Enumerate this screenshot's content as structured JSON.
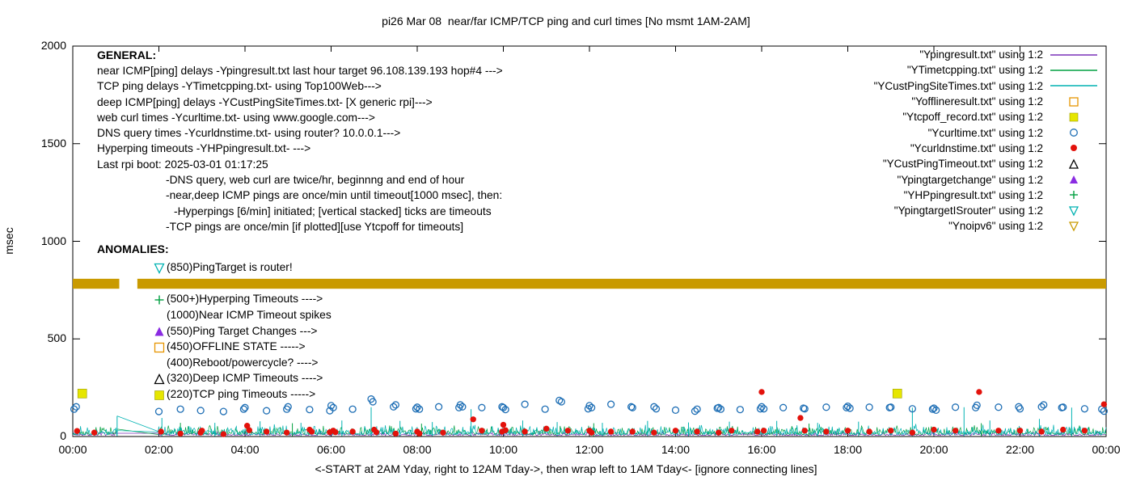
{
  "title": "pi26 Mar 08  near/far ICMP/TCP ping and curl times [No msmt 1AM-2AM]",
  "xlabel": "<-START at 2AM Yday, right to 12AM Tday->, then wrap left to 1AM Tday<- [ignore connecting lines]",
  "ylabel": "msec",
  "general": {
    "heading": "GENERAL:",
    "lines": [
      {
        "text": "near ICMP[ping] delays -Ypingresult.txt last hour target 96.108.139.193 hop#4 --->",
        "indent": 0
      },
      {
        "text": "TCP ping delays -YTimetcpping.txt- using Top100Web--->",
        "indent": 0
      },
      {
        "text": "deep ICMP[ping] delays -YCustPingSiteTimes.txt- [X generic rpi]--->",
        "indent": 0
      },
      {
        "text": "web curl times -Ycurltime.txt- using www.google.com--->",
        "indent": 0
      },
      {
        "text": "DNS query times -Ycurldnstime.txt- using router? 10.0.0.1--->",
        "indent": 0
      },
      {
        "text": "Hyperping timeouts -YHPpingresult.txt- --->",
        "indent": 0
      },
      {
        "text": "Last rpi boot: 2025-03-01 01:17:25",
        "indent": 0
      },
      {
        "text": "-DNS query, web curl are twice/hr, beginnng and end of hour",
        "indent": 1
      },
      {
        "text": "-near,deep ICMP pings are once/min until timeout[1000 msec], then:",
        "indent": 1
      },
      {
        "text": "-Hyperpings [6/min] initiated; [vertical stacked] ticks are timeouts",
        "indent": 2
      },
      {
        "text": "-TCP pings are once/min [if plotted][use Ytcpoff for timeouts]",
        "indent": 1
      }
    ]
  },
  "anomalies": {
    "heading": "ANOMALIES:",
    "items": [
      {
        "shape": "tri-down-open",
        "color": "#00b2b2",
        "label": "(850)PingTarget is router!"
      },
      {
        "shape": "",
        "color": "",
        "label": ""
      },
      {
        "shape": "plus",
        "color": "#00a040",
        "label": "(500+)Hyperping Timeouts ---->"
      },
      {
        "shape": "",
        "color": "",
        "label": "(1000)Near ICMP Timeout spikes"
      },
      {
        "shape": "tri-fill",
        "color": "#8a2be2",
        "label": "(550)Ping Target Changes --->"
      },
      {
        "shape": "square-open",
        "color": "#e69500",
        "label": "(450)OFFLINE STATE ----->"
      },
      {
        "shape": "",
        "color": "",
        "label": "(400)Reboot/powercycle? ---->"
      },
      {
        "shape": "tri-open",
        "color": "#000000",
        "label": "(320)Deep ICMP Timeouts ---->"
      },
      {
        "shape": "square-fill",
        "color": "#e6e600",
        "label": "(220)TCP ping Timeouts ----->"
      }
    ]
  },
  "legend": {
    "items": [
      {
        "label": "\"Ypingresult.txt\" using 1:2",
        "shape": "line",
        "color": "#7a30b8"
      },
      {
        "label": "\"YTimetcpping.txt\" using 1:2",
        "shape": "line",
        "color": "#00a040"
      },
      {
        "label": "\"YCustPingSiteTimes.txt\" using 1:2",
        "shape": "line",
        "color": "#00b2b2"
      },
      {
        "label": "\"Yofflineresult.txt\" using 1:2",
        "shape": "square-open",
        "color": "#e69500"
      },
      {
        "label": "\"Ytcpoff_record.txt\" using 1:2",
        "shape": "square-fill",
        "color": "#e6e600"
      },
      {
        "label": "\"Ycurltime.txt\" using 1:2",
        "shape": "circle-open",
        "color": "#1f6fb5"
      },
      {
        "label": "\"Ycurldnstime.txt\" using 1:2",
        "shape": "circle-fill",
        "color": "#e3120b"
      },
      {
        "label": "\"YCustPingTimeout.txt\" using 1:2",
        "shape": "tri-open",
        "color": "#000000"
      },
      {
        "label": "\"Ypingtargetchange\" using 1:2",
        "shape": "tri-fill",
        "color": "#8a2be2"
      },
      {
        "label": "\"YHPpingresult.txt\" using 1:2",
        "shape": "plus",
        "color": "#00a040"
      },
      {
        "label": "\"YpingtargetISrouter\" using 1:2",
        "shape": "tri-down-open",
        "color": "#00b2b2"
      },
      {
        "label": "\"Ynoipv6\" using 1:2",
        "shape": "tri-down-open",
        "color": "#c99a00"
      }
    ]
  },
  "chart_data": {
    "type": "line+scatter",
    "title": "pi26 Mar 08  near/far ICMP/TCP ping and curl times [No msmt 1AM-2AM]",
    "xlabel": "<-START at 2AM Yday, right to 12AM Tday->, then wrap left to 1AM Tday<- [ignore connecting lines]",
    "ylabel": "msec",
    "xlim": [
      0,
      24
    ],
    "ylim": [
      0,
      2000
    ],
    "x_tick_hours": [
      0,
      2,
      4,
      6,
      8,
      10,
      12,
      14,
      16,
      18,
      20,
      22,
      24
    ],
    "x_tick_labels": [
      "00:00",
      "02:00",
      "04:00",
      "06:00",
      "08:00",
      "10:00",
      "12:00",
      "14:00",
      "16:00",
      "18:00",
      "20:00",
      "22:00",
      "00:00"
    ],
    "y_ticks": [
      0,
      500,
      1000,
      1500,
      2000
    ],
    "measurement_gap_hours": [
      1.05,
      1.97
    ],
    "series": [
      {
        "name": "Ypingresult.txt",
        "type": "noise-line",
        "color": "#7a30b8",
        "base": 5,
        "amp": 22,
        "seed": 7
      },
      {
        "name": "YTimetcpping.txt",
        "type": "noise-line",
        "color": "#00a040",
        "base": 10,
        "amp": 50,
        "seed": 13,
        "spikes": [
          [
            2.5,
            70
          ],
          [
            5.1,
            68
          ],
          [
            8.1,
            66
          ],
          [
            12.1,
            68
          ],
          [
            17.1,
            66
          ],
          [
            21.1,
            68
          ]
        ]
      },
      {
        "name": "YCustPingSiteTimes.txt",
        "type": "noise-line",
        "color": "#00b2b2",
        "base": 8,
        "amp": 58,
        "seed": 29,
        "spikes": [
          [
            1.03,
            105
          ],
          [
            2.07,
            95
          ],
          [
            3.3,
            70
          ],
          [
            4.35,
            78
          ],
          [
            5.3,
            70
          ],
          [
            6.25,
            82
          ],
          [
            6.93,
            150
          ],
          [
            7.6,
            80
          ],
          [
            8.35,
            74
          ],
          [
            9.25,
            140
          ],
          [
            10.45,
            82
          ],
          [
            11.25,
            74
          ],
          [
            12.3,
            70
          ],
          [
            13.35,
            80
          ],
          [
            14.3,
            72
          ],
          [
            15.25,
            76
          ],
          [
            16.35,
            80
          ],
          [
            17.3,
            70
          ],
          [
            18.25,
            76
          ],
          [
            19.5,
            148
          ],
          [
            20.7,
            150
          ],
          [
            21.3,
            82
          ],
          [
            22.45,
            90
          ],
          [
            23.2,
            148
          ]
        ],
        "connectors": [
          [
            1.03,
            105,
            2.0,
            25
          ]
        ]
      },
      {
        "name": "Ycurltime.txt",
        "type": "scatter",
        "marker": "circle-open",
        "color": "#1f6fb5",
        "points": [
          [
            0.03,
            140
          ],
          [
            0.08,
            152
          ],
          [
            2.0,
            128
          ],
          [
            2.5,
            140
          ],
          [
            2.97,
            133
          ],
          [
            3.5,
            128
          ],
          [
            3.97,
            140
          ],
          [
            4.0,
            148
          ],
          [
            4.5,
            132
          ],
          [
            4.97,
            140
          ],
          [
            5.0,
            152
          ],
          [
            5.5,
            138
          ],
          [
            5.97,
            132
          ],
          [
            6.0,
            158
          ],
          [
            6.05,
            148
          ],
          [
            6.5,
            140
          ],
          [
            6.93,
            192
          ],
          [
            6.97,
            178
          ],
          [
            7.45,
            152
          ],
          [
            7.5,
            162
          ],
          [
            7.97,
            142
          ],
          [
            8.0,
            150
          ],
          [
            8.05,
            140
          ],
          [
            8.5,
            152
          ],
          [
            8.97,
            148
          ],
          [
            9.0,
            162
          ],
          [
            9.05,
            152
          ],
          [
            9.5,
            148
          ],
          [
            9.97,
            152
          ],
          [
            10.0,
            148
          ],
          [
            10.05,
            138
          ],
          [
            10.5,
            165
          ],
          [
            10.97,
            140
          ],
          [
            11.3,
            185
          ],
          [
            11.35,
            178
          ],
          [
            11.97,
            142
          ],
          [
            12.0,
            158
          ],
          [
            12.05,
            148
          ],
          [
            12.5,
            165
          ],
          [
            12.97,
            152
          ],
          [
            13.0,
            148
          ],
          [
            13.5,
            152
          ],
          [
            13.55,
            142
          ],
          [
            14.0,
            135
          ],
          [
            14.45,
            130
          ],
          [
            14.5,
            140
          ],
          [
            14.97,
            145
          ],
          [
            15.0,
            148
          ],
          [
            15.05,
            140
          ],
          [
            15.5,
            138
          ],
          [
            15.97,
            142
          ],
          [
            16.0,
            152
          ],
          [
            16.05,
            142
          ],
          [
            16.5,
            148
          ],
          [
            16.97,
            145
          ],
          [
            17.0,
            142
          ],
          [
            17.5,
            150
          ],
          [
            17.97,
            148
          ],
          [
            18.0,
            155
          ],
          [
            18.05,
            145
          ],
          [
            18.5,
            150
          ],
          [
            18.97,
            148
          ],
          [
            19.0,
            150
          ],
          [
            19.5,
            142
          ],
          [
            19.97,
            140
          ],
          [
            20.0,
            145
          ],
          [
            20.05,
            135
          ],
          [
            20.5,
            150
          ],
          [
            20.97,
            148
          ],
          [
            21.0,
            160
          ],
          [
            21.5,
            150
          ],
          [
            21.97,
            152
          ],
          [
            22.0,
            142
          ],
          [
            22.5,
            152
          ],
          [
            22.55,
            162
          ],
          [
            22.97,
            148
          ],
          [
            23.0,
            150
          ],
          [
            23.5,
            142
          ],
          [
            23.9,
            140
          ],
          [
            23.95,
            130
          ]
        ]
      },
      {
        "name": "Ycurldnstime.txt",
        "type": "scatter",
        "marker": "circle-fill",
        "color": "#e3120b",
        "points": [
          [
            0.1,
            28
          ],
          [
            0.5,
            20
          ],
          [
            2.05,
            25
          ],
          [
            2.5,
            15
          ],
          [
            2.97,
            20
          ],
          [
            3.0,
            30
          ],
          [
            3.5,
            12
          ],
          [
            4.05,
            55
          ],
          [
            4.1,
            32
          ],
          [
            4.5,
            25
          ],
          [
            4.97,
            20
          ],
          [
            5.5,
            35
          ],
          [
            5.55,
            25
          ],
          [
            5.97,
            22
          ],
          [
            6.05,
            30
          ],
          [
            6.1,
            22
          ],
          [
            6.5,
            25
          ],
          [
            7.0,
            35
          ],
          [
            7.05,
            22
          ],
          [
            7.5,
            15
          ],
          [
            8.0,
            25
          ],
          [
            8.05,
            15
          ],
          [
            8.6,
            20
          ],
          [
            9.3,
            88
          ],
          [
            9.5,
            30
          ],
          [
            9.97,
            25
          ],
          [
            10.0,
            60
          ],
          [
            10.05,
            32
          ],
          [
            10.5,
            25
          ],
          [
            11.0,
            40
          ],
          [
            11.5,
            30
          ],
          [
            12.0,
            30
          ],
          [
            12.05,
            20
          ],
          [
            12.5,
            25
          ],
          [
            13.0,
            25
          ],
          [
            13.5,
            20
          ],
          [
            14.0,
            30
          ],
          [
            14.5,
            25
          ],
          [
            15.0,
            20
          ],
          [
            15.3,
            30
          ],
          [
            15.9,
            25
          ],
          [
            16.0,
            228
          ],
          [
            16.05,
            30
          ],
          [
            16.9,
            95
          ],
          [
            17.0,
            30
          ],
          [
            17.5,
            25
          ],
          [
            18.0,
            30
          ],
          [
            18.5,
            25
          ],
          [
            19.0,
            30
          ],
          [
            19.5,
            20
          ],
          [
            20.0,
            35
          ],
          [
            20.5,
            30
          ],
          [
            21.05,
            228
          ],
          [
            21.5,
            30
          ],
          [
            22.0,
            30
          ],
          [
            22.5,
            25
          ],
          [
            23.0,
            35
          ],
          [
            23.5,
            30
          ],
          [
            23.95,
            165
          ]
        ]
      },
      {
        "name": "Ytcpoff_record.txt",
        "type": "scatter",
        "marker": "square-fill",
        "color": "#e6e600",
        "points": [
          [
            0.22,
            220
          ],
          [
            19.15,
            220
          ]
        ]
      },
      {
        "name": "Ynoipv6",
        "type": "band",
        "color": "#c99a00",
        "y_low": 757,
        "y_high": 808,
        "gap_x": [
          1.08,
          1.5
        ]
      }
    ]
  }
}
